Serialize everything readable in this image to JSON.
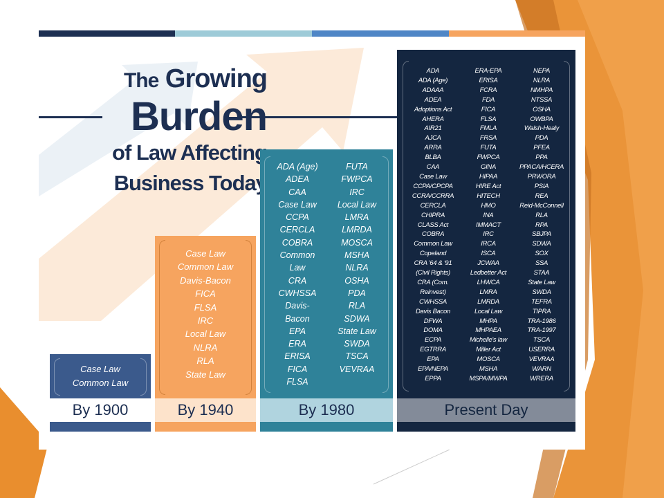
{
  "title": {
    "line1_small": "The",
    "line1_big": "Growing",
    "line2": "Burden",
    "line3": "of Law Affecting",
    "line4": "Business Today"
  },
  "colors": {
    "navy": "#1d2f52",
    "steel_blue": "#3b5a8c",
    "orange": "#f6a45f",
    "teal": "#2f8299",
    "dark_navy": "#142640",
    "light_blue": "#9ecbd8",
    "bright_blue": "#4f86c6"
  },
  "columns": [
    {
      "label": "By 1900",
      "items": [
        "Case Law",
        "Common Law"
      ]
    },
    {
      "label": "By 1940",
      "items": [
        "Case Law",
        "Common Law",
        "Davis-Bacon",
        "FICA",
        "FLSA",
        "IRC",
        "Local Law",
        "NLRA",
        "RLA",
        "State Law"
      ]
    },
    {
      "label": "By 1980",
      "items_left": [
        "ADA (Age)",
        "ADEA",
        "CAA",
        "Case Law",
        "CCPA",
        "CERCLA",
        "COBRA",
        "Common",
        "Law",
        "CRA",
        "CWHSSA",
        "Davis-",
        "Bacon",
        "EPA",
        "ERA",
        "ERISA",
        "FICA",
        "FLSA"
      ],
      "items_right": [
        "FUTA",
        "FWPCA",
        "IRC",
        "Local Law",
        "LMRA",
        "LMRDA",
        "MOSCA",
        "MSHA",
        "NLRA",
        "OSHA",
        "PDA",
        "RLA",
        "SDWA",
        "State Law",
        "SWDA",
        "TSCA",
        "VEVRAA"
      ]
    },
    {
      "label": "Present Day",
      "items_1": [
        "ADA",
        "ADA (Age)",
        "ADAAA",
        "ADEA",
        "Adoptions Act",
        "AHERA",
        "AIR21",
        "AJCA",
        "ARRA",
        "BLBA",
        "CAA",
        "Case Law",
        "CCPA/CPCPA",
        "CCRA/CCRRA",
        "CERCLA",
        "CHIPRA",
        "CLASS Act",
        "COBRA",
        "Common Law",
        "Copeland",
        "CRA '64 & '91",
        "(Civil Rights)",
        "CRA (Com.",
        "Reinvest)",
        "CWHSSA",
        "Davis Bacon",
        "DFWA",
        "DOMA",
        "ECPA",
        "EGTRRA",
        "EPA",
        "EPA/NEPA",
        "EPPA"
      ],
      "items_2": [
        "ERA-EPA",
        "ERISA",
        "FCRA",
        "FDA",
        "FICA",
        "FLSA",
        "FMLA",
        "FRSA",
        "FUTA",
        "FWPCA",
        "GINA",
        "HIPAA",
        "HIRE Act",
        "HITECH",
        "HMO",
        "INA",
        "IMMACT",
        "IRC",
        "IRCA",
        "ISCA",
        "JCWAA",
        "Ledbetter Act",
        "LHWCA",
        "LMRA",
        "LMRDA",
        "Local Law",
        "MHPA",
        "MHPAEA",
        "Michelle's law",
        "Miller Act",
        "MOSCA",
        "MSHA",
        "MSPA/MWPA"
      ],
      "items_3": [
        "NEPA",
        "NLRA",
        "NMHPA",
        "NTSSA",
        "OSHA",
        "OWBPA",
        "Walsh-Healy",
        "PDA",
        "PFEA",
        "PPA",
        "PPACA/HCERA",
        "PRWORA",
        "PSIA",
        "REA",
        "Reid-McConnell",
        "RLA",
        "RPA",
        "SBJPA",
        "SDWA",
        "SOX",
        "SSA",
        "STAA",
        "State Law",
        "SWDA",
        "TEFRA",
        "TIPRA",
        "TRA-1986",
        "TRA-1997",
        "TSCA",
        "USERRA",
        "VEVRAA",
        "WARN",
        "WRERA"
      ]
    }
  ]
}
